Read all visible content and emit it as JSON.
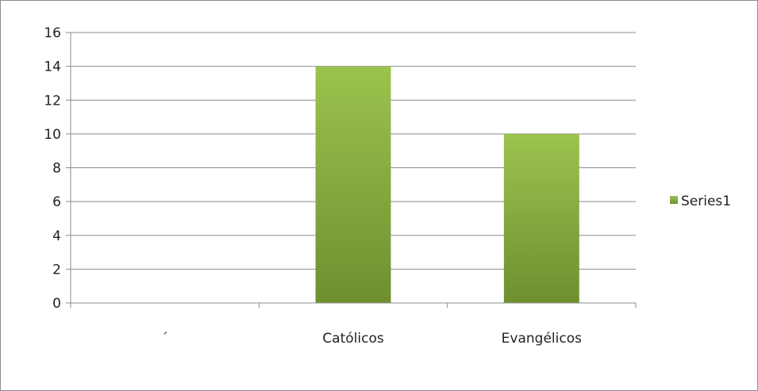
{
  "chart_data": {
    "type": "bar",
    "categories": [
      "´",
      "Católicos",
      "Evangélicos"
    ],
    "series": [
      {
        "name": "Series1",
        "values": [
          0,
          14,
          10
        ]
      }
    ],
    "title": "",
    "xlabel": "",
    "ylabel": "",
    "ylim": [
      0,
      16
    ],
    "yticks": [
      0,
      2,
      4,
      6,
      8,
      10,
      12,
      14,
      16
    ],
    "grid": true,
    "legend_position": "right",
    "colors": {
      "bar_top": "#9bc34e",
      "bar_bottom": "#6f8f30",
      "grid": "#8c8c8c",
      "axis": "#8c8c8c",
      "text": "#222222"
    }
  }
}
